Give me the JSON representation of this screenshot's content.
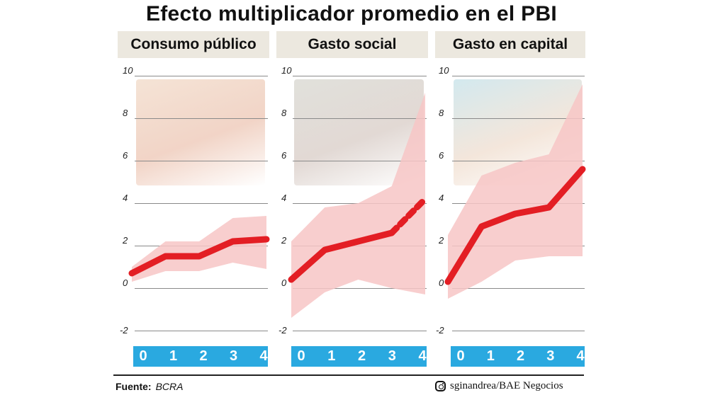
{
  "title": "Efecto multiplicador promedio en el PBI",
  "colors": {
    "line": "#e31e24",
    "band": "#f7c6c6",
    "axis_bar": "#2aa9e0",
    "header_bg": "#ece8df"
  },
  "y_ticks": [
    "10",
    "8",
    "6",
    "4",
    "2",
    "0",
    "-2"
  ],
  "x_ticks": [
    "0",
    "1",
    "2",
    "3",
    "4"
  ],
  "chart_data": [
    {
      "type": "line",
      "title": "Consumo público",
      "x": [
        0,
        1,
        2,
        3,
        4
      ],
      "series": [
        {
          "values": [
            0.7,
            1.5,
            1.5,
            2.2,
            2.3
          ],
          "band_low": [
            0.3,
            0.8,
            0.8,
            1.2,
            0.9
          ],
          "band_high": [
            1.0,
            2.2,
            2.2,
            3.3,
            3.4
          ]
        }
      ],
      "ylim": [
        -2,
        10
      ]
    },
    {
      "type": "line",
      "title": "Gasto social",
      "x": [
        0,
        1,
        2,
        3,
        4
      ],
      "dashed_from": 3,
      "series": [
        {
          "values": [
            0.4,
            1.8,
            2.2,
            2.6,
            4.2
          ],
          "band_low": [
            -1.4,
            -0.2,
            0.4,
            0.0,
            -0.3
          ],
          "band_high": [
            2.2,
            3.8,
            4.0,
            4.8,
            9.2
          ]
        }
      ],
      "ylim": [
        -2,
        10
      ]
    },
    {
      "type": "line",
      "title": "Gasto en capital",
      "x": [
        0,
        1,
        2,
        3,
        4
      ],
      "series": [
        {
          "values": [
            0.3,
            2.9,
            3.5,
            3.8,
            5.6
          ],
          "band_low": [
            -0.5,
            0.3,
            1.3,
            1.5,
            1.5
          ],
          "band_high": [
            2.5,
            5.3,
            5.9,
            6.3,
            9.6
          ]
        }
      ],
      "ylim": [
        -2,
        10
      ]
    }
  ],
  "footer": {
    "source_label": "Fuente:",
    "source_value": "BCRA",
    "credit": "sginandrea/BAE Negocios",
    "credit_icon": "instagram-icon"
  }
}
